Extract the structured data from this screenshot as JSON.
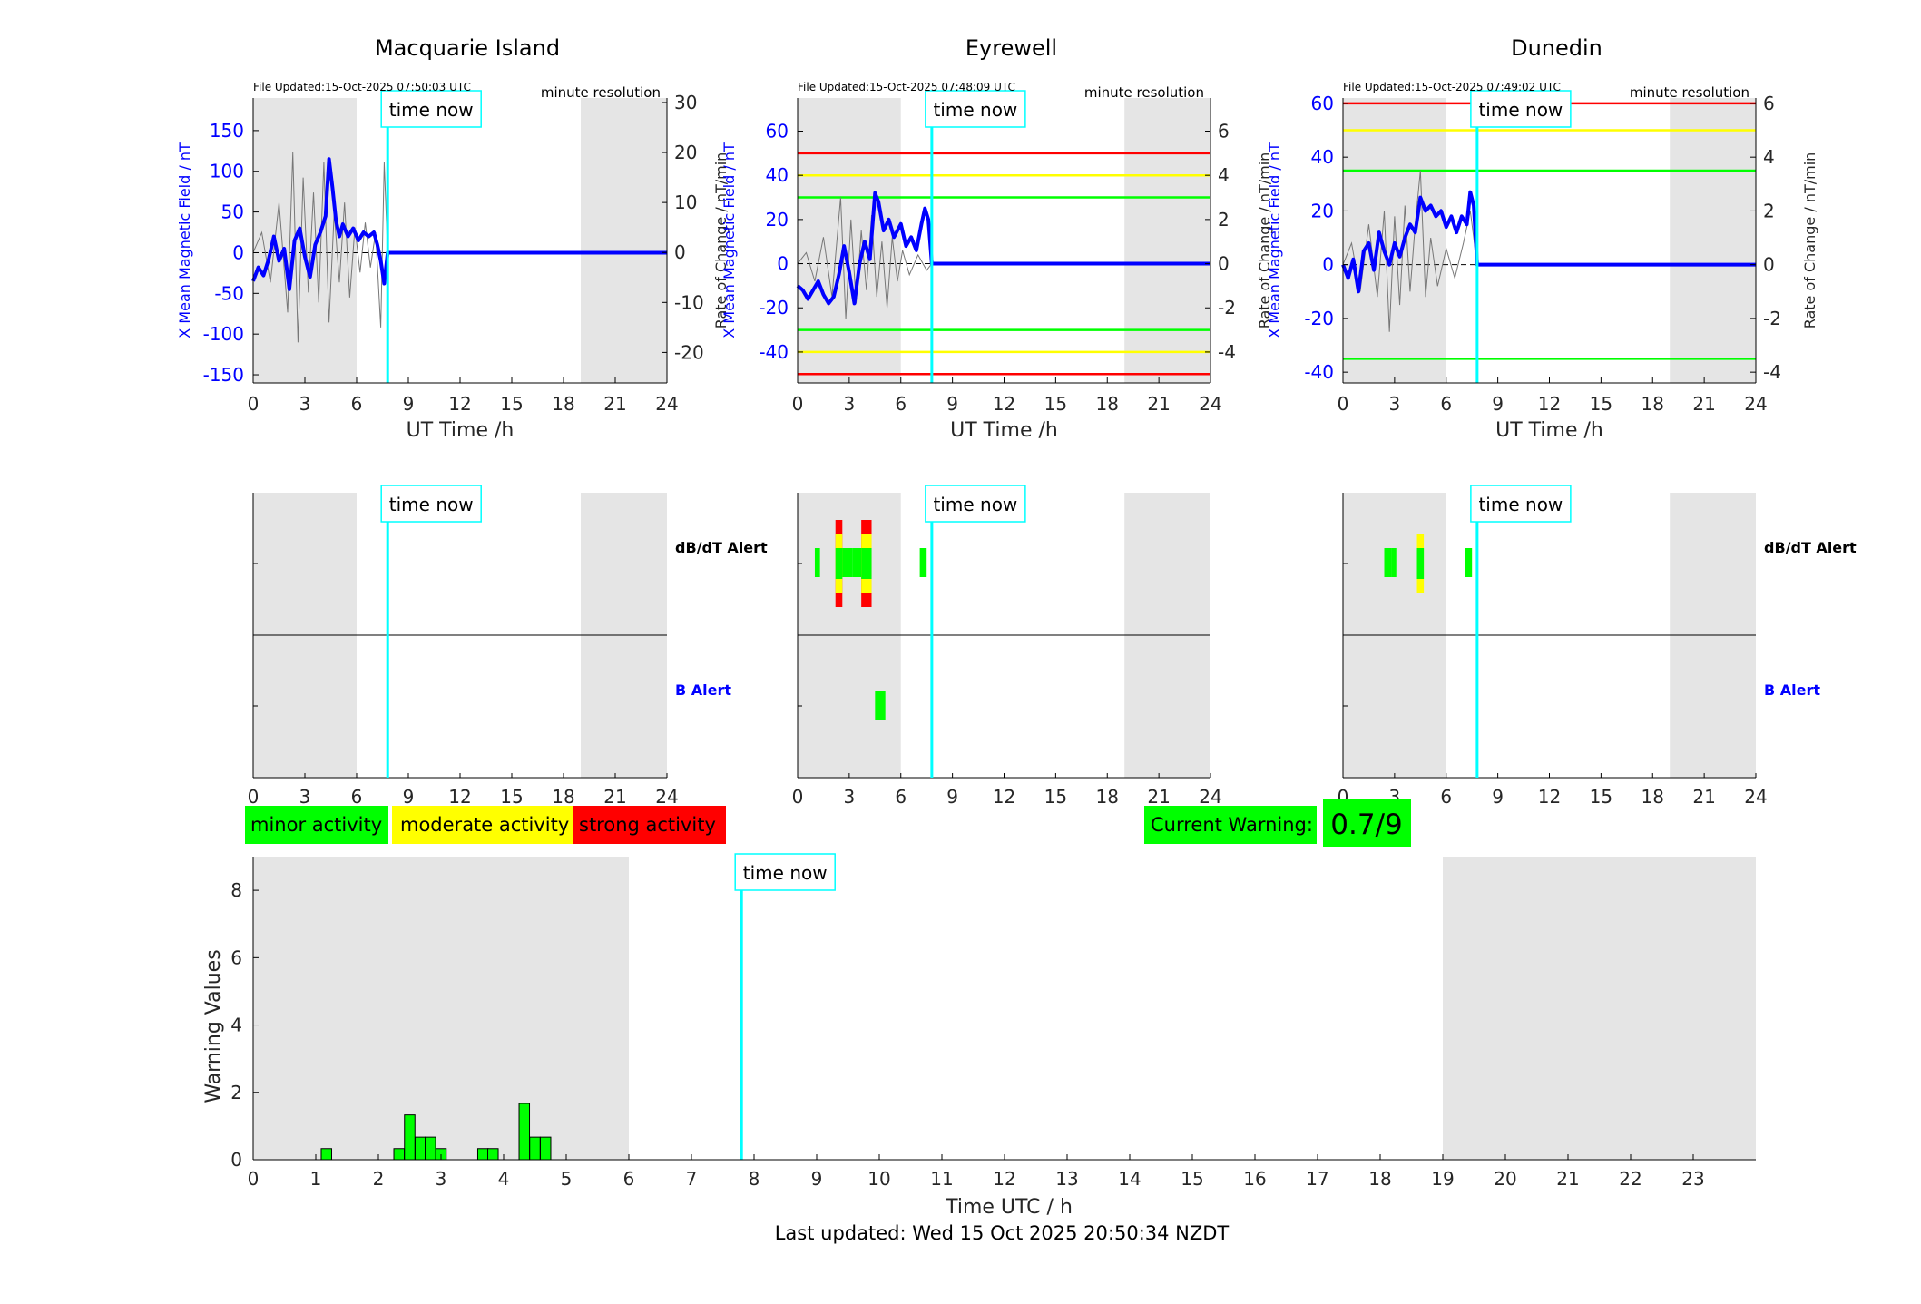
{
  "colors": {
    "blue": "#0000ff",
    "cyan": "#00ffff",
    "shade": "#e5e5e5",
    "green": "#00ff00",
    "yellow": "#ffff00",
    "red": "#ff0000",
    "grey_trace": "#777777"
  },
  "labels": {
    "time_now": "time now",
    "file_updated_label": "File Updated:",
    "minute_resolution": "minute resolution",
    "ut_time": "UT Time /h",
    "y_left": "X Mean Magnetic Field / nT",
    "y_right": "Rate of Change / nT/min",
    "dbdt_alert": "dB/dT Alert",
    "b_alert": "B Alert",
    "legend_minor": "minor activity",
    "legend_moderate": "moderate activity",
    "legend_strong": "strong activity",
    "current_warning_label": "Current Warning:",
    "current_warning_value": "0.7/9",
    "bottom_ylabel": "Warning Values",
    "bottom_xlabel": "Time UTC / h",
    "last_updated": "Last updated: Wed 15 Oct 2025 20:50:34 NZDT"
  },
  "chart_data": [
    {
      "type": "line",
      "title": "Macquarie Island",
      "file_updated": "15-Oct-2025 07:50:03 UTC",
      "xlabel": "UT Time /h",
      "ylabel": "X Mean Magnetic Field / nT",
      "ylabel_right": "Rate of Change / nT/min",
      "xlim": [
        0,
        24
      ],
      "ylim": [
        -160,
        190
      ],
      "ylim_right": [
        -26.1,
        30.9
      ],
      "yticks": [
        -150,
        -100,
        -50,
        0,
        50,
        100,
        150
      ],
      "yticks_right": [
        -20,
        -10,
        0,
        10,
        20,
        30
      ],
      "shaded_hours": [
        [
          0,
          6
        ],
        [
          19,
          24
        ]
      ],
      "time_now": 7.8,
      "threshold_lines": [],
      "series": [
        {
          "name": "X Mean Magnetic Field / nT",
          "x": [
            0,
            0.3,
            0.6,
            0.9,
            1.2,
            1.5,
            1.8,
            2.1,
            2.4,
            2.7,
            3.0,
            3.3,
            3.6,
            3.9,
            4.2,
            4.4,
            4.6,
            4.8,
            5.0,
            5.2,
            5.5,
            5.8,
            6.1,
            6.4,
            6.7,
            7.0,
            7.2,
            7.4,
            7.6,
            7.8,
            24
          ],
          "values": [
            -35,
            -18,
            -28,
            -8,
            20,
            -10,
            5,
            -45,
            15,
            30,
            -5,
            -30,
            10,
            25,
            45,
            115,
            80,
            40,
            20,
            35,
            20,
            30,
            15,
            25,
            20,
            25,
            10,
            -10,
            -38,
            0,
            0
          ]
        },
        {
          "name": "Rate of Change / nT/min",
          "x": [
            0,
            0.5,
            1.0,
            1.5,
            2.0,
            2.3,
            2.6,
            2.9,
            3.2,
            3.5,
            3.8,
            4.1,
            4.4,
            4.7,
            5.0,
            5.3,
            5.6,
            5.9,
            6.2,
            6.5,
            6.8,
            7.1,
            7.4,
            7.6,
            7.8,
            24
          ],
          "values": [
            0,
            4,
            -6,
            10,
            -12,
            20,
            -18,
            15,
            -8,
            12,
            -10,
            18,
            -14,
            8,
            -6,
            10,
            -9,
            5,
            -4,
            6,
            -3,
            4,
            -15,
            18,
            0,
            0
          ]
        }
      ]
    },
    {
      "type": "line",
      "title": "Eyrewell",
      "file_updated": "15-Oct-2025 07:48:09 UTC",
      "xlabel": "UT Time /h",
      "ylabel": "X Mean Magnetic Field / nT",
      "ylabel_right": "Rate of Change / nT/min",
      "xlim": [
        0,
        24
      ],
      "ylim": [
        -54,
        75
      ],
      "ylim_right": [
        -5.4,
        7.5
      ],
      "yticks": [
        -40,
        -20,
        0,
        20,
        40,
        60
      ],
      "yticks_right": [
        -4,
        -2,
        0,
        2,
        4,
        6
      ],
      "shaded_hours": [
        [
          0,
          6
        ],
        [
          19,
          24
        ]
      ],
      "time_now": 7.8,
      "threshold_lines": [
        {
          "value": 50,
          "color": "red"
        },
        {
          "value": 40,
          "color": "yellow"
        },
        {
          "value": 30,
          "color": "green"
        },
        {
          "value": -30,
          "color": "green"
        },
        {
          "value": -40,
          "color": "yellow"
        },
        {
          "value": -50,
          "color": "red"
        }
      ],
      "series": [
        {
          "name": "X Mean Magnetic Field / nT",
          "x": [
            0,
            0.3,
            0.6,
            0.9,
            1.2,
            1.5,
            1.8,
            2.1,
            2.4,
            2.7,
            3.0,
            3.3,
            3.6,
            3.9,
            4.2,
            4.5,
            4.7,
            5.0,
            5.3,
            5.6,
            6.0,
            6.3,
            6.6,
            6.9,
            7.2,
            7.4,
            7.6,
            7.8,
            24
          ],
          "values": [
            -10,
            -12,
            -16,
            -12,
            -8,
            -14,
            -18,
            -15,
            -5,
            8,
            -4,
            -18,
            0,
            10,
            2,
            32,
            28,
            15,
            20,
            12,
            18,
            8,
            12,
            6,
            18,
            25,
            20,
            0,
            0
          ]
        },
        {
          "name": "Rate of Change / nT/min",
          "x": [
            0,
            0.5,
            1.0,
            1.5,
            2.0,
            2.5,
            2.8,
            3.1,
            3.4,
            3.7,
            4.0,
            4.3,
            4.6,
            4.9,
            5.2,
            5.5,
            5.8,
            6.1,
            6.5,
            7.0,
            7.5,
            7.8,
            24
          ],
          "values": [
            0,
            0.5,
            -0.8,
            1.2,
            -1.5,
            3.0,
            -2.5,
            2.0,
            -1.8,
            1.5,
            -1.2,
            2.2,
            -1.5,
            1.0,
            -2.0,
            1.2,
            -0.8,
            0.6,
            -0.5,
            0.4,
            -0.3,
            0,
            0
          ]
        }
      ]
    },
    {
      "type": "line",
      "title": "Dunedin",
      "file_updated": "15-Oct-2025 07:49:02 UTC",
      "xlabel": "UT Time /h",
      "ylabel": "X Mean Magnetic Field / nT",
      "ylabel_right": "Rate of Change / nT/min",
      "xlim": [
        0,
        24
      ],
      "ylim": [
        -44,
        62
      ],
      "ylim_right": [
        -4.4,
        6.2
      ],
      "yticks": [
        -40,
        -20,
        0,
        20,
        40,
        60
      ],
      "yticks_right": [
        -4,
        -2,
        0,
        2,
        4,
        6
      ],
      "shaded_hours": [
        [
          0,
          6
        ],
        [
          19,
          24
        ]
      ],
      "time_now": 7.8,
      "threshold_lines": [
        {
          "value": 60,
          "color": "red"
        },
        {
          "value": 50,
          "color": "yellow"
        },
        {
          "value": 35,
          "color": "green"
        },
        {
          "value": -35,
          "color": "green"
        }
      ],
      "series": [
        {
          "name": "X Mean Magnetic Field / nT",
          "x": [
            0,
            0.3,
            0.6,
            0.9,
            1.2,
            1.5,
            1.8,
            2.1,
            2.4,
            2.7,
            3.0,
            3.3,
            3.6,
            3.9,
            4.2,
            4.5,
            4.8,
            5.1,
            5.4,
            5.7,
            6.0,
            6.3,
            6.6,
            6.9,
            7.2,
            7.4,
            7.6,
            7.8,
            24
          ],
          "values": [
            0,
            -5,
            2,
            -10,
            5,
            8,
            -2,
            12,
            5,
            0,
            8,
            3,
            10,
            15,
            12,
            25,
            20,
            22,
            18,
            20,
            14,
            18,
            12,
            18,
            15,
            27,
            22,
            0,
            0
          ]
        },
        {
          "name": "Rate of Change / nT/min",
          "x": [
            0,
            0.5,
            1.0,
            1.5,
            2.0,
            2.4,
            2.7,
            3.0,
            3.3,
            3.6,
            3.9,
            4.2,
            4.5,
            4.8,
            5.1,
            5.5,
            6.0,
            6.5,
            7.0,
            7.4,
            7.8,
            24
          ],
          "values": [
            0,
            0.8,
            -1.0,
            1.5,
            -1.2,
            2.0,
            -2.5,
            1.8,
            -1.5,
            2.2,
            -1.0,
            1.5,
            3.5,
            -1.2,
            1.0,
            -0.8,
            0.6,
            -0.5,
            0.8,
            2.0,
            0,
            0
          ]
        }
      ]
    },
    {
      "type": "bar",
      "title": "",
      "xlabel": "Time UTC / h",
      "ylabel": "Warning Values",
      "xlim": [
        0,
        24
      ],
      "ylim": [
        0,
        9
      ],
      "yticks": [
        0,
        2,
        4,
        6,
        8
      ],
      "xticks": [
        0,
        1,
        2,
        3,
        4,
        5,
        6,
        7,
        8,
        9,
        10,
        11,
        12,
        13,
        14,
        15,
        16,
        17,
        18,
        19,
        20,
        21,
        22,
        23
      ],
      "shaded_hours": [
        [
          0,
          6
        ],
        [
          19,
          24
        ]
      ],
      "time_now": 7.8,
      "bar_width_h": 0.1667,
      "x": [
        1.17,
        2.33,
        2.5,
        2.67,
        2.83,
        3.0,
        3.67,
        3.83,
        4.33,
        4.5,
        4.67
      ],
      "values": [
        0.33,
        0.33,
        1.33,
        0.67,
        0.67,
        0.33,
        0.33,
        0.33,
        1.67,
        0.67,
        0.67
      ]
    }
  ],
  "alerts": [
    {
      "station": "Macquarie Island",
      "show_labels": true,
      "dbdt_events": [],
      "b_events": []
    },
    {
      "station": "Eyrewell",
      "show_labels": false,
      "dbdt_events": [
        {
          "x0": 1.0,
          "x1": 1.3,
          "level": "minor"
        },
        {
          "x0": 2.2,
          "x1": 2.6,
          "level": "strong"
        },
        {
          "x0": 2.6,
          "x1": 3.2,
          "level": "minor"
        },
        {
          "x0": 3.2,
          "x1": 3.7,
          "level": "minor"
        },
        {
          "x0": 3.7,
          "x1": 4.3,
          "level": "strong"
        },
        {
          "x0": 7.1,
          "x1": 7.5,
          "level": "minor"
        }
      ],
      "b_events": [
        {
          "x0": 4.5,
          "x1": 5.1,
          "level": "minor"
        }
      ]
    },
    {
      "station": "Dunedin",
      "show_labels": true,
      "dbdt_events": [
        {
          "x0": 2.4,
          "x1": 2.8,
          "level": "minor"
        },
        {
          "x0": 2.8,
          "x1": 3.1,
          "level": "minor"
        },
        {
          "x0": 4.3,
          "x1": 4.7,
          "level": "moderate"
        },
        {
          "x0": 7.1,
          "x1": 7.5,
          "level": "minor"
        }
      ],
      "b_events": []
    }
  ]
}
